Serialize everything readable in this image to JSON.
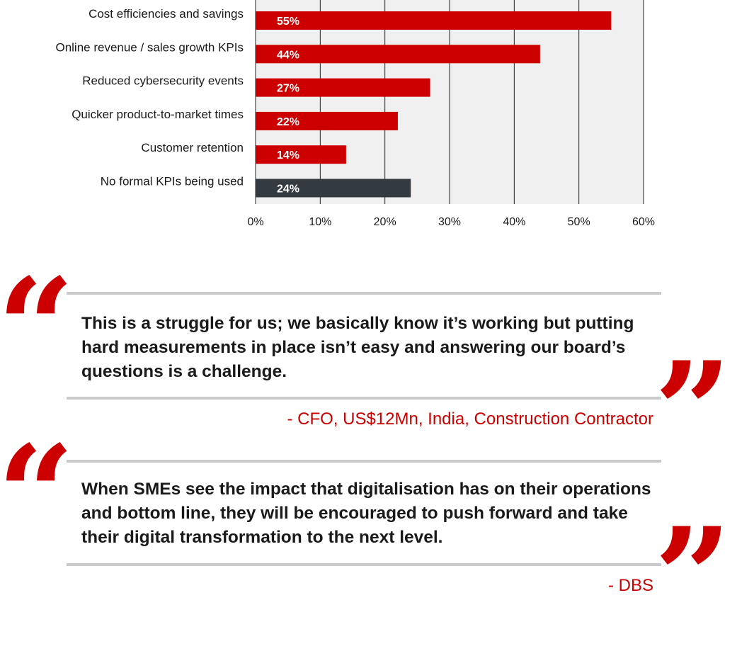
{
  "chart_data": {
    "type": "bar",
    "orientation": "horizontal",
    "categories": [
      "Cost efficiencies and savings",
      "Online revenue / sales growth KPIs",
      "Reduced cybersecurity events",
      "Quicker product-to-market times",
      "Customer retention",
      "No formal KPIs being used"
    ],
    "values": [
      55,
      44,
      27,
      22,
      14,
      24
    ],
    "value_labels": [
      "55%",
      "44%",
      "27%",
      "22%",
      "14%",
      "24%"
    ],
    "bar_colors": [
      "#cc0000",
      "#cc0000",
      "#cc0000",
      "#cc0000",
      "#cc0000",
      "#333a40"
    ],
    "xlim": [
      0,
      60
    ],
    "ticks": [
      0,
      10,
      20,
      30,
      40,
      50,
      60
    ],
    "tick_labels": [
      "0%",
      "10%",
      "20%",
      "30%",
      "40%",
      "50%",
      "60%"
    ],
    "plot_background": "#f0f0f0",
    "grid": true,
    "title": "",
    "xlabel": "",
    "ylabel": ""
  },
  "quotes": [
    {
      "text": "This is a struggle for us; we basically know it’s working but putting hard measurements in place isn’t easy and answering our board’s questions is a challenge.",
      "attribution": "- CFO, US$12Mn, India, Construction Contractor"
    },
    {
      "text": "When SMEs see the impact that digitalisation has on their operations and bottom line, they will be encouraged to push forward and take their digital transformation to the next level.",
      "attribution": "- DBS"
    }
  ],
  "colors": {
    "accent": "#cc0000",
    "neutral_bar": "#333a40",
    "rule": "#c8cacc",
    "text": "#1a1a1a"
  }
}
